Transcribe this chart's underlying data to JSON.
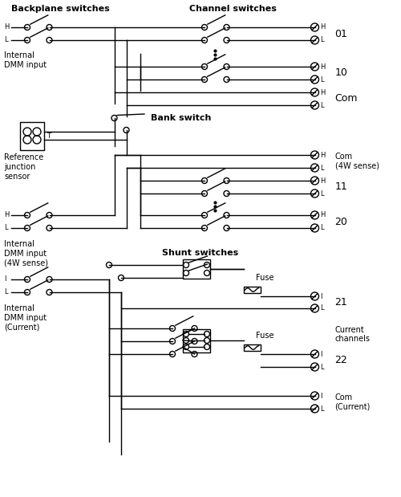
{
  "bg_color": "#ffffff",
  "line_color": "#000000",
  "backplane_title": "Backplane switches",
  "channel_title": "Channel switches",
  "bank_title": "Bank switch",
  "shunt_title": "Shunt switches",
  "lbl_internal_dmm": "Internal\nDMM input",
  "lbl_ref_junction": "Reference\njunction\nsensor",
  "lbl_internal_dmm_4w": "Internal\nDMM input\n(4W sense)",
  "lbl_internal_dmm_curr": "Internal\nDMM input\n(Current)",
  "lbl_current_channels": "Current\nchannels",
  "lbl_fuse": "Fuse",
  "lbl_01": "01",
  "lbl_10": "10",
  "lbl_com": "Com",
  "lbl_com_4w": "Com\n(4W sense)",
  "lbl_11": "11",
  "lbl_20": "20",
  "lbl_21": "21",
  "lbl_22": "22",
  "lbl_com_curr": "Com\n(Current)"
}
